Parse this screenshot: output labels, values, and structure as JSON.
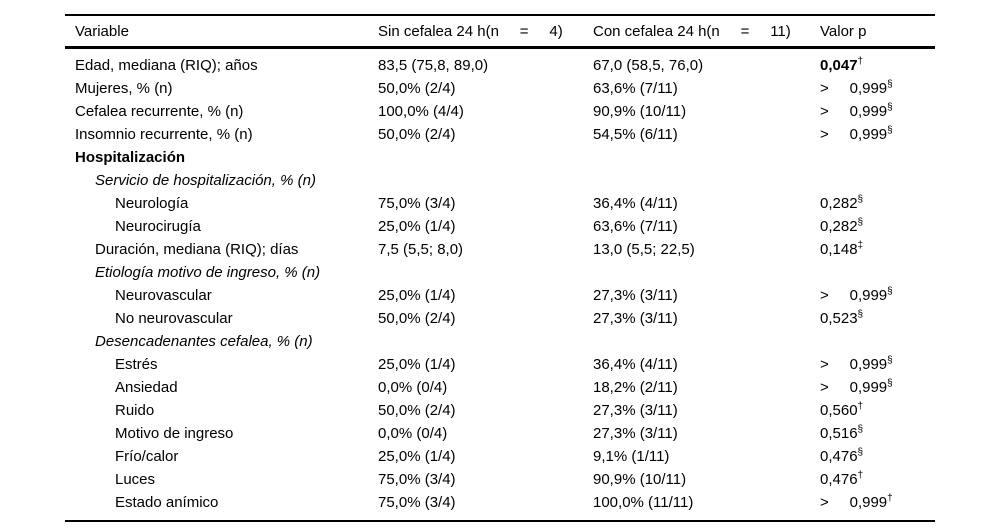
{
  "colors": {
    "background": "#ffffff",
    "text": "#000000",
    "rule": "#000000"
  },
  "table": {
    "header": {
      "col_variable": "Variable",
      "col_group1": "Sin cefalea 24 h(n     =     4)",
      "col_group2": "Con cefalea 24 h(n     =     11)",
      "col_p": "Valor p"
    },
    "rows": [
      {
        "label": "Edad, mediana (RIQ); años",
        "indent": 0,
        "style": "normal",
        "c1": "83,5 (75,8, 89,0)",
        "c2": "67,0 (58,5, 76,0)",
        "p": "0,047",
        "p_sup": "†",
        "p_bold": true
      },
      {
        "label": "Mujeres, % (n)",
        "indent": 0,
        "style": "normal",
        "c1": "50,0% (2/4)",
        "c2": "63,6% (7/11)",
        "p": ">     0,999",
        "p_sup": "§",
        "p_bold": false
      },
      {
        "label": "Cefalea recurrente, % (n)",
        "indent": 0,
        "style": "normal",
        "c1": "100,0% (4/4)",
        "c2": "90,9% (10/11)",
        "p": ">     0,999",
        "p_sup": "§",
        "p_bold": false
      },
      {
        "label": "Insomnio recurrente, % (n)",
        "indent": 0,
        "style": "normal",
        "c1": "50,0% (2/4)",
        "c2": "54,5% (6/11)",
        "p": ">     0,999",
        "p_sup": "§",
        "p_bold": false
      },
      {
        "label": "Hospitalización",
        "indent": 0,
        "style": "bold",
        "c1": "",
        "c2": "",
        "p": "",
        "p_sup": "",
        "p_bold": false
      },
      {
        "label": "Servicio de hospitalización, % (n)",
        "indent": 1,
        "style": "italic",
        "c1": "",
        "c2": "",
        "p": "",
        "p_sup": "",
        "p_bold": false
      },
      {
        "label": "Neurología",
        "indent": 2,
        "style": "normal",
        "c1": "75,0% (3/4)",
        "c2": "36,4% (4/11)",
        "p": "0,282",
        "p_sup": "§",
        "p_bold": false
      },
      {
        "label": "Neurocirugía",
        "indent": 2,
        "style": "normal",
        "c1": "25,0% (1/4)",
        "c2": "63,6% (7/11)",
        "p": "0,282",
        "p_sup": "§",
        "p_bold": false
      },
      {
        "label": "Duración, mediana (RIQ); días",
        "indent": 1,
        "style": "normal",
        "c1": "7,5 (5,5; 8,0)",
        "c2": "13,0 (5,5; 22,5)",
        "p": "0,148",
        "p_sup": "‡",
        "p_bold": false
      },
      {
        "label": "Etiología motivo de ingreso, % (n)",
        "indent": 1,
        "style": "italic",
        "c1": "",
        "c2": "",
        "p": "",
        "p_sup": "",
        "p_bold": false
      },
      {
        "label": "Neurovascular",
        "indent": 2,
        "style": "normal",
        "c1": "25,0% (1/4)",
        "c2": "27,3% (3/11)",
        "p": ">     0,999",
        "p_sup": "§",
        "p_bold": false
      },
      {
        "label": "No neurovascular",
        "indent": 2,
        "style": "normal",
        "c1": "50,0% (2/4)",
        "c2": "27,3% (3/11)",
        "p": "0,523",
        "p_sup": "§",
        "p_bold": false
      },
      {
        "label": "Desencadenantes cefalea, % (n)",
        "indent": 1,
        "style": "italic",
        "c1": "",
        "c2": "",
        "p": "",
        "p_sup": "",
        "p_bold": false
      },
      {
        "label": "Estrés",
        "indent": 2,
        "style": "normal",
        "c1": "25,0% (1/4)",
        "c2": "36,4% (4/11)",
        "p": ">     0,999",
        "p_sup": "§",
        "p_bold": false
      },
      {
        "label": "Ansiedad",
        "indent": 2,
        "style": "normal",
        "c1": "0,0% (0/4)",
        "c2": "18,2% (2/11)",
        "p": ">     0,999",
        "p_sup": "§",
        "p_bold": false
      },
      {
        "label": "Ruido",
        "indent": 2,
        "style": "normal",
        "c1": "50,0% (2/4)",
        "c2": "27,3% (3/11)",
        "p": "0,560",
        "p_sup": "†",
        "p_bold": false
      },
      {
        "label": "Motivo de ingreso",
        "indent": 2,
        "style": "normal",
        "c1": "0,0% (0/4)",
        "c2": "27,3% (3/11)",
        "p": "0,516",
        "p_sup": "§",
        "p_bold": false
      },
      {
        "label": "Frío/calor",
        "indent": 2,
        "style": "normal",
        "c1": "25,0% (1/4)",
        "c2": "9,1% (1/11)",
        "p": "0,476",
        "p_sup": "§",
        "p_bold": false
      },
      {
        "label": "Luces",
        "indent": 2,
        "style": "normal",
        "c1": "75,0% (3/4)",
        "c2": "90,9% (10/11)",
        "p": "0,476",
        "p_sup": "†",
        "p_bold": false
      },
      {
        "label": "Estado anímico",
        "indent": 2,
        "style": "normal",
        "c1": "75,0% (3/4)",
        "c2": "100,0% (11/11)",
        "p": ">     0,999",
        "p_sup": "†",
        "p_bold": false
      }
    ]
  }
}
